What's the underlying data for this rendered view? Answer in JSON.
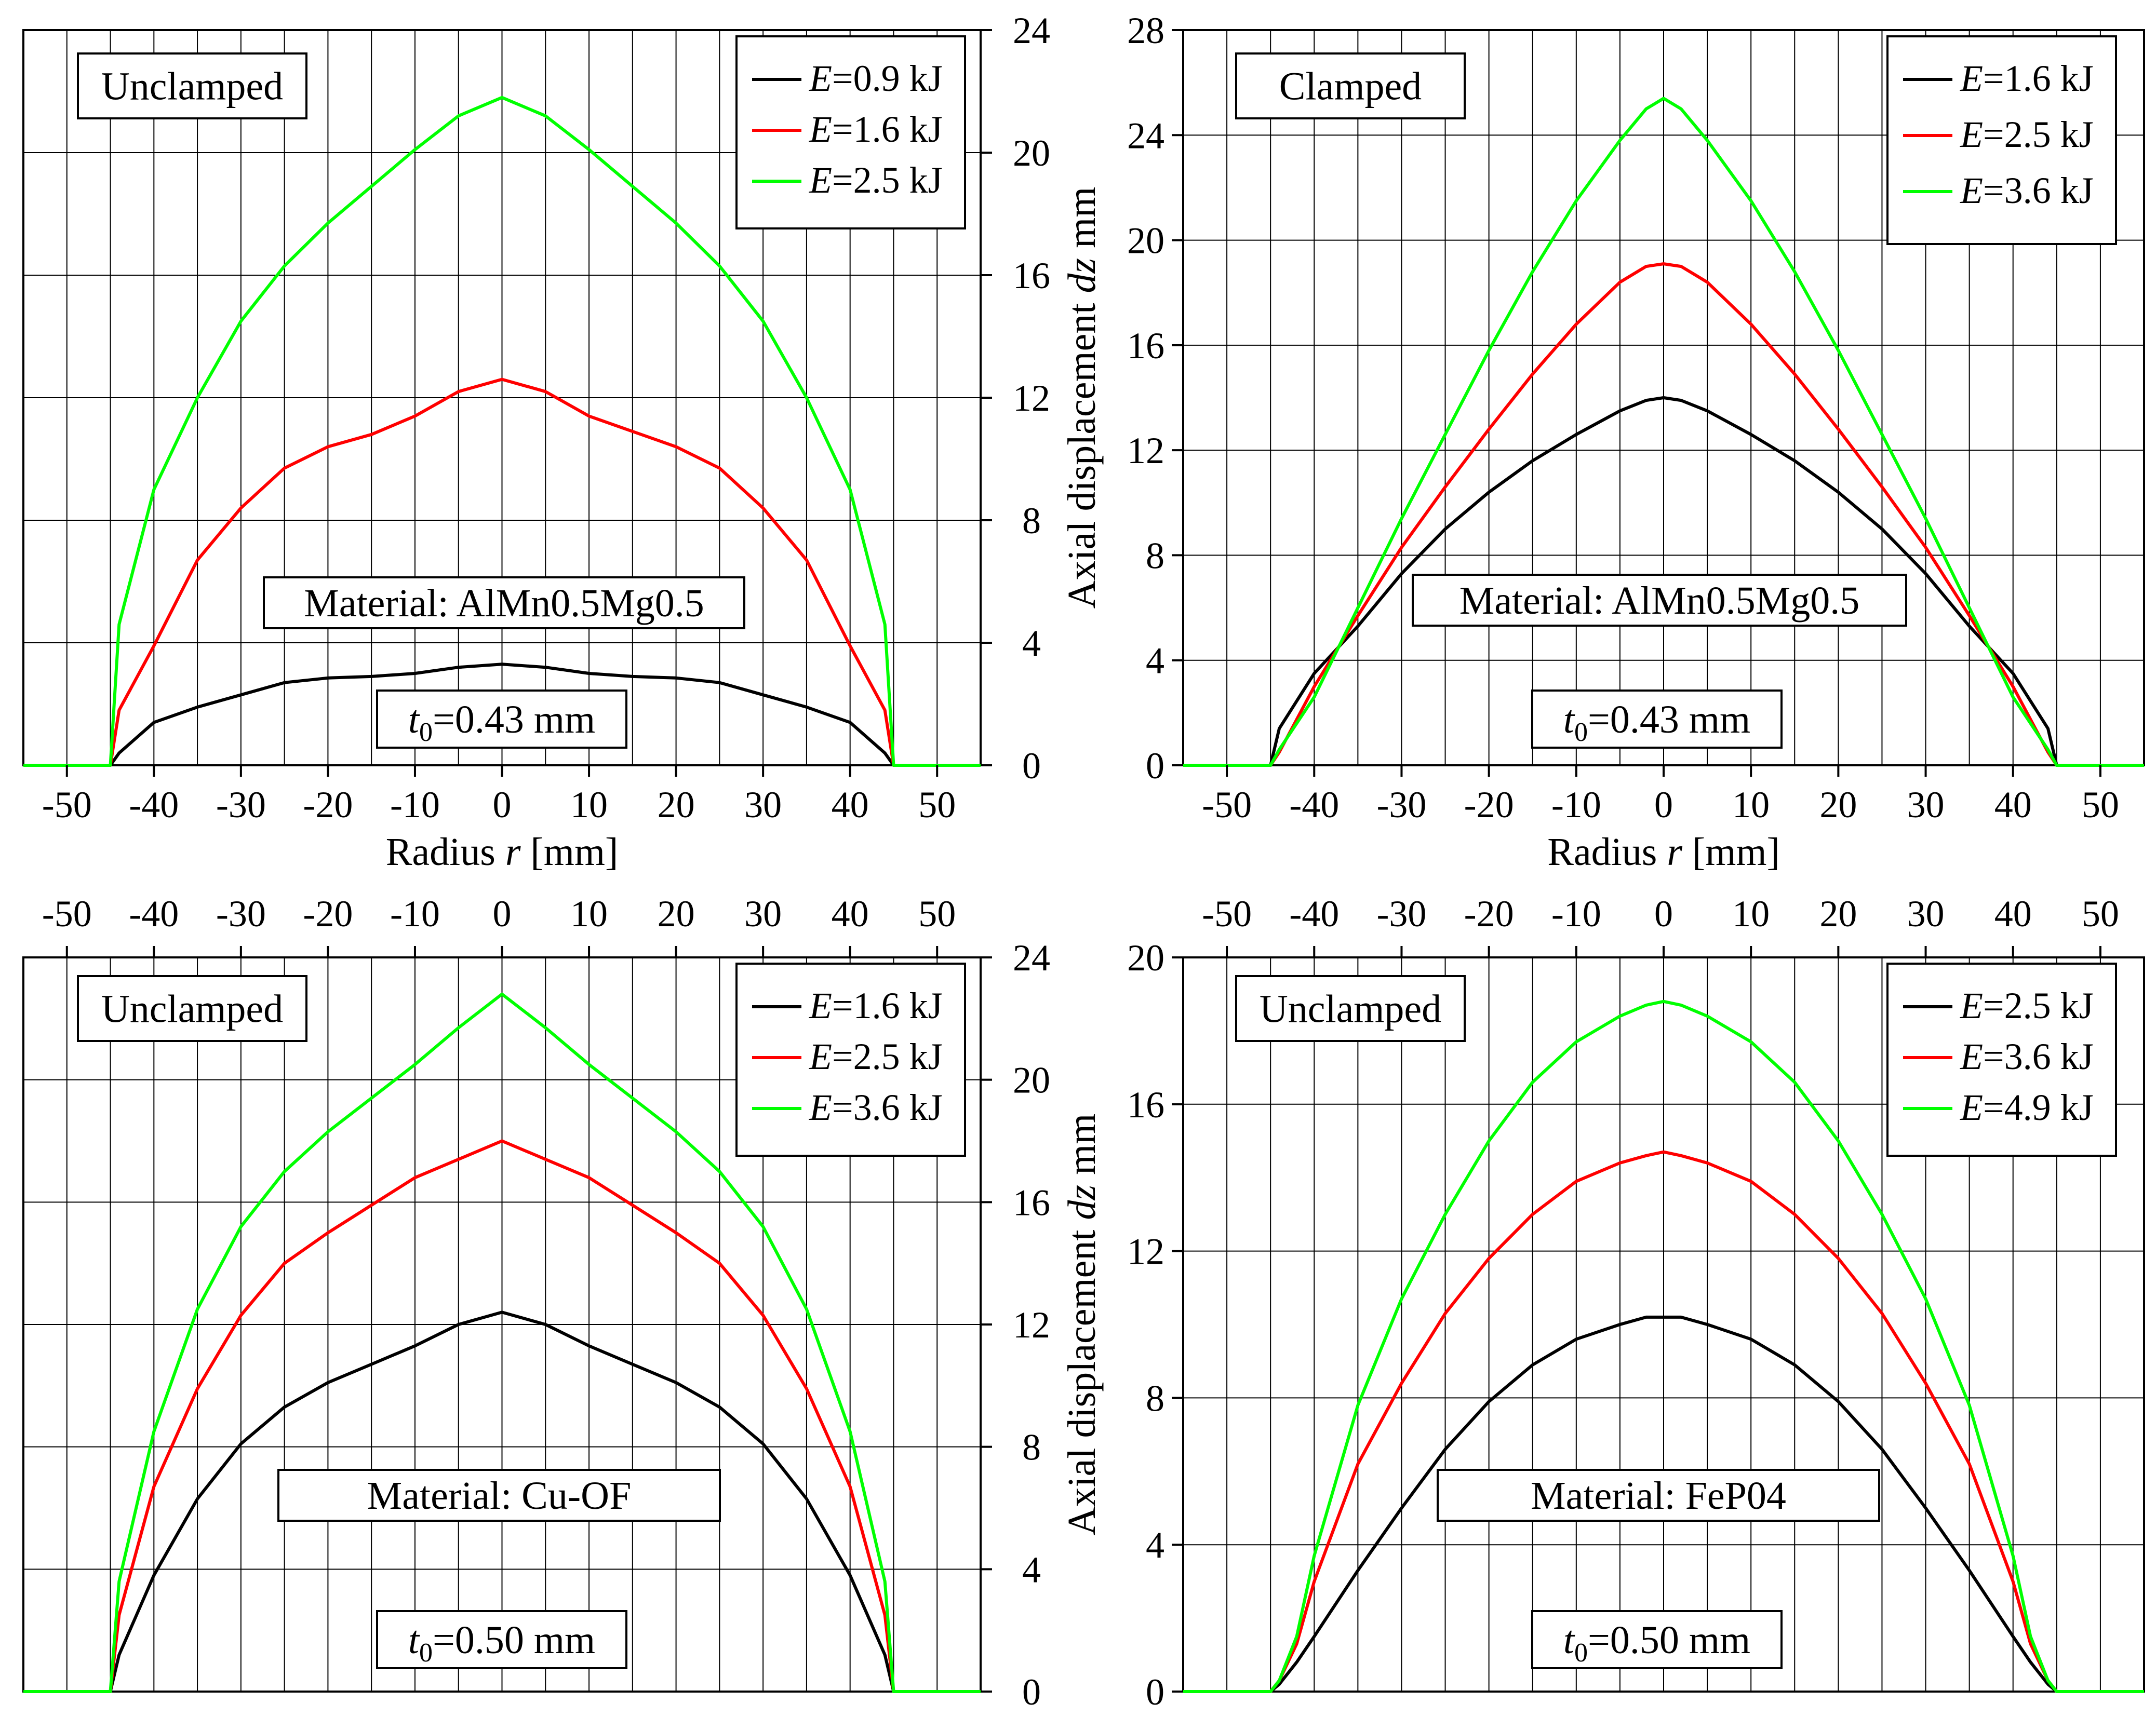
{
  "x_axis_label": {
    "prefix": "Radius ",
    "var": "r",
    "suffix": " [mm]"
  },
  "y_axis_label": {
    "prefix": "Axial displacement ",
    "var": "dz",
    "suffix": " mm"
  },
  "chart_data": [
    {
      "id": "top-left",
      "type": "line",
      "state_label": "Unclamped",
      "material_label": "Material: AlMn0.5Mg0.5",
      "thickness": {
        "var": "t",
        "sub": "0",
        "rest": "=0.43 mm"
      },
      "xlabel": "Radius r [mm]",
      "ylabel": "Axial displacement dz mm",
      "xlim": [
        -55,
        55
      ],
      "xticks": [
        -50,
        -40,
        -30,
        -20,
        -10,
        0,
        10,
        20,
        30,
        40,
        50
      ],
      "ylim": [
        0,
        24
      ],
      "yticks": [
        0,
        4,
        8,
        12,
        16,
        20,
        24
      ],
      "grid": true,
      "legend_position": "top-right",
      "series": [
        {
          "name": "E=0.9 kJ",
          "energy": "=0.9 kJ",
          "color": "#000000",
          "x": [
            -55,
            -45,
            -44,
            -40,
            -35,
            -30,
            -25,
            -20,
            -15,
            -10,
            -5,
            0,
            5,
            10,
            15,
            20,
            25,
            30,
            35,
            40,
            44,
            45,
            55
          ],
          "y": [
            0,
            0,
            0.4,
            1.4,
            1.9,
            2.3,
            2.7,
            2.85,
            2.9,
            3.0,
            3.2,
            3.3,
            3.2,
            3.0,
            2.9,
            2.85,
            2.7,
            2.3,
            1.9,
            1.4,
            0.4,
            0,
            0
          ]
        },
        {
          "name": "E=1.6 kJ",
          "energy": "=1.6 kJ",
          "color": "#ff0000",
          "x": [
            -55,
            -45,
            -44,
            -40,
            -35,
            -30,
            -25,
            -20,
            -15,
            -10,
            -5,
            0,
            5,
            10,
            15,
            20,
            25,
            30,
            35,
            40,
            44,
            45,
            55
          ],
          "y": [
            0,
            0,
            1.8,
            3.9,
            6.7,
            8.4,
            9.7,
            10.4,
            10.8,
            11.4,
            12.2,
            12.6,
            12.2,
            11.4,
            10.9,
            10.4,
            9.7,
            8.4,
            6.7,
            3.9,
            1.8,
            0,
            0
          ]
        },
        {
          "name": "E=2.5 kJ",
          "energy": "=2.5 kJ",
          "color": "#00ff00",
          "x": [
            -55,
            -45,
            -44,
            -40,
            -35,
            -30,
            -25,
            -20,
            -15,
            -10,
            -5,
            0,
            5,
            10,
            15,
            20,
            25,
            30,
            35,
            40,
            44,
            45,
            55
          ],
          "y": [
            0,
            0,
            4.6,
            9.0,
            12.0,
            14.5,
            16.3,
            17.7,
            18.9,
            20.1,
            21.2,
            21.8,
            21.2,
            20.1,
            18.9,
            17.7,
            16.3,
            14.5,
            12.0,
            9.0,
            4.6,
            0,
            0
          ]
        }
      ]
    },
    {
      "id": "top-right",
      "type": "line",
      "state_label": "Clamped",
      "material_label": "Material: AlMn0.5Mg0.5",
      "thickness": {
        "var": "t",
        "sub": "0",
        "rest": "=0.43 mm"
      },
      "xlabel": "Radius r [mm]",
      "ylabel": "Axial displacement dz mm",
      "xlim": [
        -55,
        55
      ],
      "xticks": [
        -50,
        -40,
        -30,
        -20,
        -10,
        0,
        10,
        20,
        30,
        40,
        50
      ],
      "ylim": [
        0,
        28
      ],
      "yticks": [
        0,
        4,
        8,
        12,
        16,
        20,
        24,
        28
      ],
      "grid": true,
      "legend_position": "top-right",
      "series": [
        {
          "name": "E=1.6 kJ",
          "energy": "=1.6 kJ",
          "color": "#000000",
          "x": [
            -55,
            -45,
            -44,
            -40,
            -35,
            -30,
            -25,
            -20,
            -15,
            -10,
            -5,
            -2,
            0,
            2,
            5,
            10,
            15,
            20,
            25,
            30,
            35,
            40,
            44,
            45,
            55
          ],
          "y": [
            0,
            0,
            1.4,
            3.5,
            5.3,
            7.3,
            9.0,
            10.4,
            11.6,
            12.6,
            13.5,
            13.9,
            14.0,
            13.9,
            13.5,
            12.6,
            11.6,
            10.4,
            9.0,
            7.3,
            5.3,
            3.5,
            1.4,
            0,
            0
          ]
        },
        {
          "name": "E=2.5 kJ",
          "energy": "=2.5 kJ",
          "color": "#ff0000",
          "x": [
            -55,
            -45,
            -44,
            -40,
            -35,
            -30,
            -25,
            -20,
            -15,
            -10,
            -5,
            -2,
            0,
            2,
            5,
            10,
            15,
            20,
            25,
            30,
            35,
            40,
            44,
            45,
            55
          ],
          "y": [
            0,
            0,
            0.5,
            3.0,
            5.7,
            8.3,
            10.6,
            12.8,
            14.9,
            16.8,
            18.4,
            19.0,
            19.1,
            19.0,
            18.4,
            16.8,
            14.9,
            12.8,
            10.6,
            8.3,
            5.7,
            3.0,
            0.5,
            0,
            0
          ]
        },
        {
          "name": "E=3.6 kJ",
          "energy": "=3.6 kJ",
          "color": "#00ff00",
          "x": [
            -55,
            -45,
            -44,
            -40,
            -35,
            -30,
            -25,
            -20,
            -15,
            -10,
            -5,
            -2,
            0,
            2,
            5,
            10,
            15,
            20,
            25,
            30,
            35,
            40,
            44,
            45,
            55
          ],
          "y": [
            0,
            0,
            0.6,
            2.6,
            6.0,
            9.4,
            12.6,
            15.8,
            18.8,
            21.5,
            23.8,
            25.0,
            25.4,
            25.0,
            23.8,
            21.5,
            18.8,
            15.8,
            12.6,
            9.4,
            6.0,
            2.6,
            0.6,
            0,
            0
          ]
        }
      ]
    },
    {
      "id": "bottom-left",
      "type": "line",
      "state_label": "Unclamped",
      "material_label": "Material: Cu-OF",
      "thickness": {
        "var": "t",
        "sub": "0",
        "rest": "=0.50 mm"
      },
      "xlim": [
        -55,
        55
      ],
      "xticks": [
        -50,
        -40,
        -30,
        -20,
        -10,
        0,
        10,
        20,
        30,
        40,
        50
      ],
      "ylim": [
        0,
        24
      ],
      "yticks": [
        0,
        4,
        8,
        12,
        16,
        20,
        24
      ],
      "grid": true,
      "legend_position": "top-right",
      "series": [
        {
          "name": "E=1.6 kJ",
          "energy": "=1.6 kJ",
          "color": "#000000",
          "x": [
            -55,
            -45,
            -44,
            -40,
            -35,
            -30,
            -25,
            -20,
            -15,
            -10,
            -5,
            0,
            5,
            10,
            15,
            20,
            25,
            30,
            35,
            40,
            44,
            45,
            55
          ],
          "y": [
            0,
            0,
            1.2,
            3.8,
            6.3,
            8.1,
            9.3,
            10.1,
            10.7,
            11.3,
            12.0,
            12.4,
            12.0,
            11.3,
            10.7,
            10.1,
            9.3,
            8.1,
            6.3,
            3.8,
            1.2,
            0,
            0
          ]
        },
        {
          "name": "E=2.5 kJ",
          "energy": "=2.5 kJ",
          "color": "#ff0000",
          "x": [
            -55,
            -45,
            -44,
            -40,
            -35,
            -30,
            -25,
            -20,
            -15,
            -10,
            -5,
            0,
            5,
            10,
            15,
            20,
            25,
            30,
            35,
            40,
            44,
            45,
            55
          ],
          "y": [
            0,
            0,
            2.5,
            6.7,
            9.9,
            12.3,
            14.0,
            15.0,
            15.9,
            16.8,
            17.4,
            18.0,
            17.4,
            16.8,
            15.9,
            15.0,
            14.0,
            12.3,
            9.9,
            6.7,
            2.5,
            0,
            0
          ]
        },
        {
          "name": "E=3.6 kJ",
          "energy": "=3.6 kJ",
          "color": "#00ff00",
          "x": [
            -55,
            -45,
            -44,
            -40,
            -35,
            -30,
            -25,
            -20,
            -15,
            -10,
            -5,
            0,
            5,
            10,
            15,
            20,
            25,
            30,
            35,
            40,
            44,
            45,
            55
          ],
          "y": [
            0,
            0,
            3.6,
            8.5,
            12.5,
            15.2,
            17.0,
            18.3,
            19.4,
            20.5,
            21.7,
            22.8,
            21.7,
            20.5,
            19.4,
            18.3,
            17.0,
            15.2,
            12.5,
            8.5,
            3.6,
            0,
            0
          ]
        }
      ]
    },
    {
      "id": "bottom-right",
      "type": "line",
      "state_label": "Unclamped",
      "material_label": "Material: FeP04",
      "thickness": {
        "var": "t",
        "sub": "0",
        "rest": "=0.50 mm"
      },
      "ylabel": "Axial displacement dz mm",
      "xlim": [
        -55,
        55
      ],
      "xticks": [
        -50,
        -40,
        -30,
        -20,
        -10,
        0,
        10,
        20,
        30,
        40,
        50
      ],
      "ylim": [
        0,
        20
      ],
      "yticks": [
        0,
        4,
        8,
        12,
        16,
        20
      ],
      "grid": true,
      "legend_position": "top-right",
      "series": [
        {
          "name": "E=2.5 kJ",
          "energy": "=2.5 kJ",
          "color": "#000000",
          "x": [
            -55,
            -45,
            -44,
            -42,
            -40,
            -35,
            -30,
            -25,
            -20,
            -15,
            -10,
            -5,
            -2,
            0,
            2,
            5,
            10,
            15,
            20,
            25,
            30,
            35,
            40,
            42,
            44,
            45,
            55
          ],
          "y": [
            0,
            0,
            0.2,
            0.8,
            1.5,
            3.3,
            5.0,
            6.6,
            7.9,
            8.9,
            9.6,
            10.0,
            10.2,
            10.2,
            10.2,
            10.0,
            9.6,
            8.9,
            7.9,
            6.6,
            5.0,
            3.3,
            1.5,
            0.8,
            0.2,
            0,
            0
          ]
        },
        {
          "name": "E=3.6 kJ",
          "energy": "=3.6 kJ",
          "color": "#ff0000",
          "x": [
            -55,
            -45,
            -44,
            -42,
            -40,
            -35,
            -30,
            -25,
            -20,
            -15,
            -10,
            -5,
            -2,
            0,
            2,
            5,
            10,
            15,
            20,
            25,
            30,
            35,
            40,
            42,
            44,
            45,
            55
          ],
          "y": [
            0,
            0,
            0.3,
            1.3,
            3.0,
            6.2,
            8.4,
            10.3,
            11.8,
            13.0,
            13.9,
            14.4,
            14.6,
            14.7,
            14.6,
            14.4,
            13.9,
            13.0,
            11.8,
            10.3,
            8.4,
            6.2,
            3.0,
            1.3,
            0.3,
            0,
            0
          ]
        },
        {
          "name": "E=4.9 kJ",
          "energy": "=4.9 kJ",
          "color": "#00ff00",
          "x": [
            -55,
            -45,
            -44,
            -42,
            -40,
            -35,
            -30,
            -25,
            -20,
            -15,
            -10,
            -5,
            -2,
            0,
            2,
            5,
            10,
            15,
            20,
            25,
            30,
            35,
            40,
            42,
            44,
            45,
            55
          ],
          "y": [
            0,
            0,
            0.3,
            1.5,
            3.7,
            7.8,
            10.7,
            13.0,
            15.0,
            16.6,
            17.7,
            18.4,
            18.7,
            18.8,
            18.7,
            18.4,
            17.7,
            16.6,
            15.0,
            13.0,
            10.7,
            7.8,
            3.7,
            1.5,
            0.3,
            0,
            0
          ]
        }
      ]
    }
  ]
}
